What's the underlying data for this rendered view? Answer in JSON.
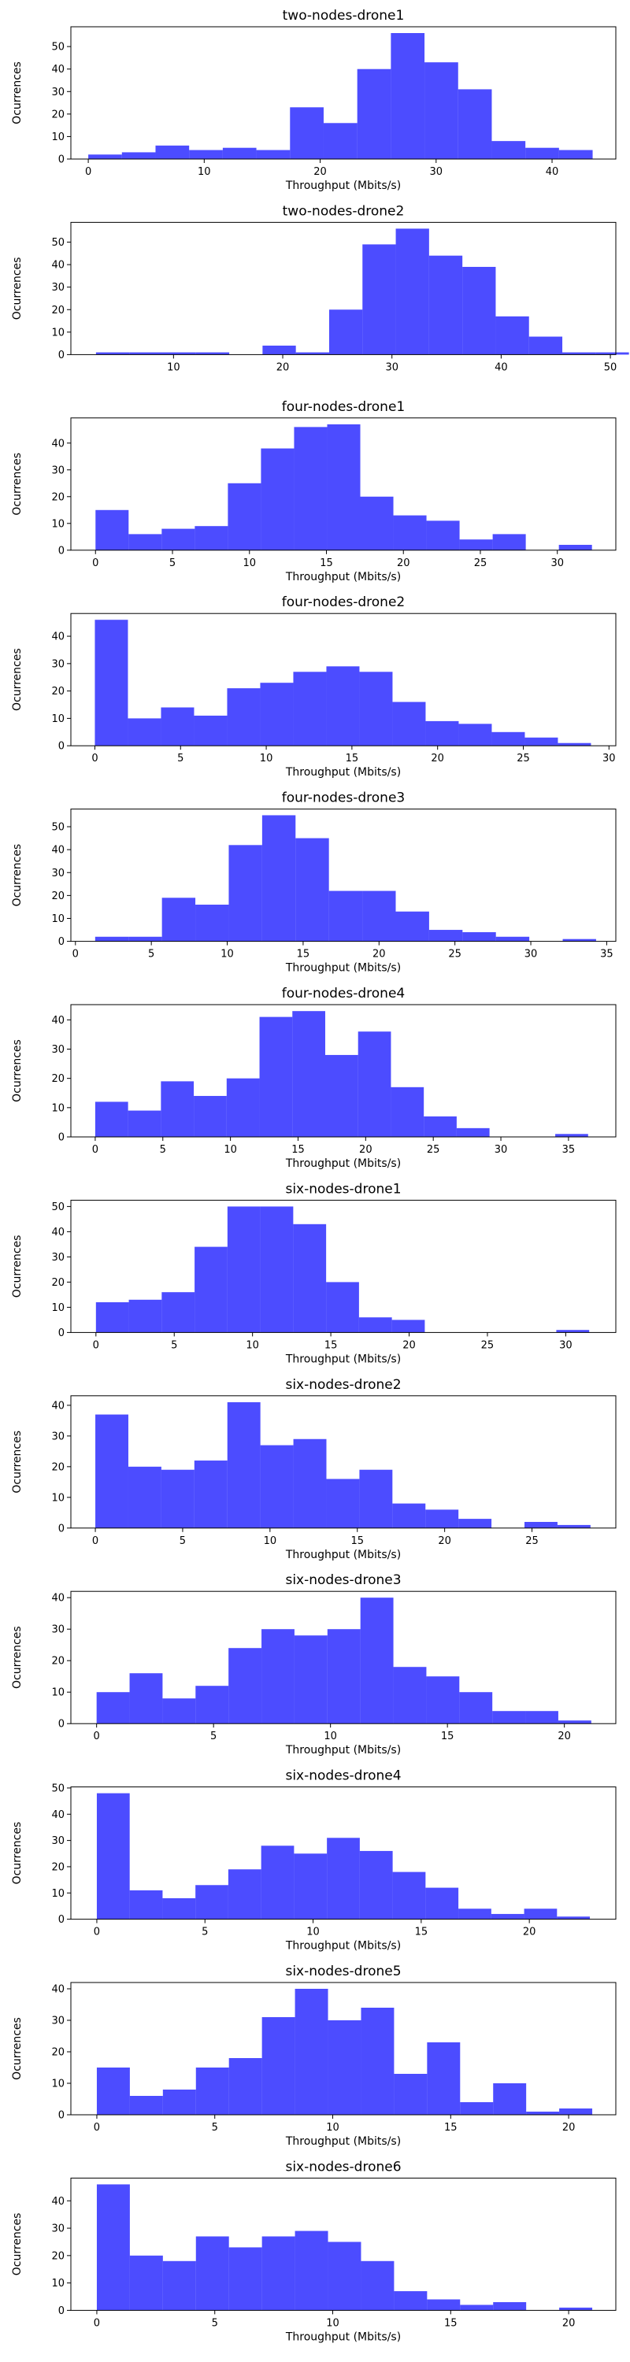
{
  "style": {
    "bar_color": "#0000ff",
    "bar_opacity": 0.7
  },
  "chart_data": [
    {
      "type": "bar",
      "title": "two-nodes-drone1",
      "xlabel": "Throughput (Mbits/s)",
      "ylabel": "Ocurrences",
      "xlim": [
        -1.5,
        45.5
      ],
      "ylim": [
        0,
        58.8
      ],
      "xticks": [
        0,
        10,
        20,
        30,
        40
      ],
      "yticks": [
        0,
        10,
        20,
        30,
        40,
        50
      ],
      "bin_start": 0,
      "bin_width": 2.9,
      "values": [
        2,
        3,
        6,
        4,
        5,
        4,
        23,
        16,
        40,
        56,
        43,
        31,
        8,
        5,
        4
      ]
    },
    {
      "type": "bar",
      "title": "two-nodes-drone2",
      "xlabel": "",
      "ylabel": "Ocurrences",
      "xlim": [
        0.6,
        50.5
      ],
      "ylim": [
        0,
        58.8
      ],
      "xticks": [
        10,
        20,
        30,
        40,
        50
      ],
      "yticks": [
        0,
        10,
        20,
        30,
        40,
        50
      ],
      "bin_start": 2.9,
      "bin_width": 3.05,
      "values": [
        1,
        1,
        1,
        1,
        0,
        4,
        1,
        20,
        49,
        56,
        44,
        39,
        17,
        8,
        1,
        1
      ]
    },
    {
      "type": "bar",
      "title": "four-nodes-drone1",
      "xlabel": "Throughput (Mbits/s)",
      "ylabel": "Ocurrences",
      "xlim": [
        -1.6,
        33.8
      ],
      "ylim": [
        0,
        49.4
      ],
      "xticks": [
        0,
        5,
        10,
        15,
        20,
        25,
        30
      ],
      "yticks": [
        0,
        10,
        20,
        30,
        40
      ],
      "bin_start": 0,
      "bin_width": 2.15,
      "values": [
        15,
        6,
        8,
        9,
        25,
        38,
        46,
        47,
        20,
        13,
        11,
        4,
        6,
        0,
        2
      ]
    },
    {
      "type": "bar",
      "title": "four-nodes-drone2",
      "xlabel": "Throughput (Mbits/s)",
      "ylabel": "Ocurrences",
      "xlim": [
        -1.4,
        30.4
      ],
      "ylim": [
        0,
        48.3
      ],
      "xticks": [
        0,
        5,
        10,
        15,
        20,
        25,
        30
      ],
      "yticks": [
        0,
        10,
        20,
        30,
        40
      ],
      "bin_start": 0,
      "bin_width": 1.93,
      "values": [
        46,
        10,
        14,
        11,
        21,
        23,
        27,
        29,
        27,
        16,
        9,
        8,
        5,
        3,
        1
      ]
    },
    {
      "type": "bar",
      "title": "four-nodes-drone3",
      "xlabel": "Throughput (Mbits/s)",
      "ylabel": "Ocurrences",
      "xlim": [
        -0.3,
        35.6
      ],
      "ylim": [
        0,
        57.7
      ],
      "xticks": [
        0,
        5,
        10,
        15,
        20,
        25,
        30,
        35
      ],
      "yticks": [
        0,
        10,
        20,
        30,
        40,
        50
      ],
      "bin_start": 1.3,
      "bin_width": 2.2,
      "values": [
        2,
        2,
        19,
        16,
        42,
        55,
        45,
        22,
        22,
        13,
        5,
        4,
        2,
        0,
        1
      ]
    },
    {
      "type": "bar",
      "title": "four-nodes-drone4",
      "xlabel": "Throughput (Mbits/s)",
      "ylabel": "Ocurrences",
      "xlim": [
        -1.8,
        38.5
      ],
      "ylim": [
        0,
        45.2
      ],
      "xticks": [
        0,
        5,
        10,
        15,
        20,
        25,
        30,
        35
      ],
      "yticks": [
        0,
        10,
        20,
        30,
        40
      ],
      "bin_start": 0,
      "bin_width": 2.43,
      "values": [
        12,
        9,
        19,
        14,
        20,
        41,
        43,
        28,
        36,
        17,
        7,
        3,
        0,
        0,
        1
      ]
    },
    {
      "type": "bar",
      "title": "six-nodes-drone1",
      "xlabel": "Throughput (Mbits/s)",
      "ylabel": "Ocurrences",
      "xlim": [
        -1.6,
        33.2
      ],
      "ylim": [
        0,
        52.5
      ],
      "xticks": [
        0,
        5,
        10,
        15,
        20,
        25,
        30
      ],
      "yticks": [
        0,
        10,
        20,
        30,
        40,
        50
      ],
      "bin_start": 0,
      "bin_width": 2.1,
      "values": [
        12,
        13,
        16,
        34,
        50,
        50,
        43,
        20,
        6,
        5,
        0,
        0,
        0,
        0,
        1
      ]
    },
    {
      "type": "bar",
      "title": "six-nodes-drone2",
      "xlabel": "Throughput (Mbits/s)",
      "ylabel": "Ocurrences",
      "xlim": [
        -1.4,
        29.8
      ],
      "ylim": [
        0,
        43.1
      ],
      "xticks": [
        0,
        5,
        10,
        15,
        20,
        25
      ],
      "yticks": [
        0,
        10,
        20,
        30,
        40
      ],
      "bin_start": 0,
      "bin_width": 1.89,
      "values": [
        37,
        20,
        19,
        22,
        41,
        27,
        29,
        16,
        19,
        8,
        6,
        3,
        0,
        2,
        1
      ]
    },
    {
      "type": "bar",
      "title": "six-nodes-drone3",
      "xlabel": "Throughput (Mbits/s)",
      "ylabel": "Ocurrences",
      "xlim": [
        -1.1,
        22.2
      ],
      "ylim": [
        0,
        42.0
      ],
      "xticks": [
        0,
        5,
        10,
        15,
        20
      ],
      "yticks": [
        0,
        10,
        20,
        30,
        40
      ],
      "bin_start": 0,
      "bin_width": 1.41,
      "values": [
        10,
        16,
        8,
        12,
        24,
        30,
        28,
        30,
        40,
        18,
        15,
        10,
        4,
        4,
        1
      ]
    },
    {
      "type": "bar",
      "title": "six-nodes-drone4",
      "xlabel": "Throughput (Mbits/s)",
      "ylabel": "Ocurrences",
      "xlim": [
        -1.2,
        24.0
      ],
      "ylim": [
        0,
        50.4
      ],
      "xticks": [
        0,
        5,
        10,
        15,
        20
      ],
      "yticks": [
        0,
        10,
        20,
        30,
        40,
        50
      ],
      "bin_start": 0,
      "bin_width": 1.52,
      "values": [
        48,
        11,
        8,
        13,
        19,
        28,
        25,
        31,
        26,
        18,
        12,
        4,
        2,
        4,
        1
      ]
    },
    {
      "type": "bar",
      "title": "six-nodes-drone5",
      "xlabel": "Throughput (Mbits/s)",
      "ylabel": "Ocurrences",
      "xlim": [
        -1.1,
        22.0
      ],
      "ylim": [
        0,
        42.0
      ],
      "xticks": [
        0,
        5,
        10,
        15,
        20
      ],
      "yticks": [
        0,
        10,
        20,
        30,
        40
      ],
      "bin_start": 0,
      "bin_width": 1.4,
      "values": [
        15,
        6,
        8,
        15,
        18,
        31,
        40,
        30,
        34,
        13,
        23,
        4,
        10,
        1,
        2
      ]
    },
    {
      "type": "bar",
      "title": "six-nodes-drone6",
      "xlabel": "Throughput (Mbits/s)",
      "ylabel": "Ocurrences",
      "xlim": [
        -1.1,
        22.0
      ],
      "ylim": [
        0,
        48.3
      ],
      "xticks": [
        0,
        5,
        10,
        15,
        20
      ],
      "yticks": [
        0,
        10,
        20,
        30,
        40
      ],
      "bin_start": 0,
      "bin_width": 1.4,
      "values": [
        46,
        20,
        18,
        27,
        23,
        27,
        29,
        25,
        18,
        7,
        4,
        2,
        3,
        0,
        1
      ]
    }
  ]
}
